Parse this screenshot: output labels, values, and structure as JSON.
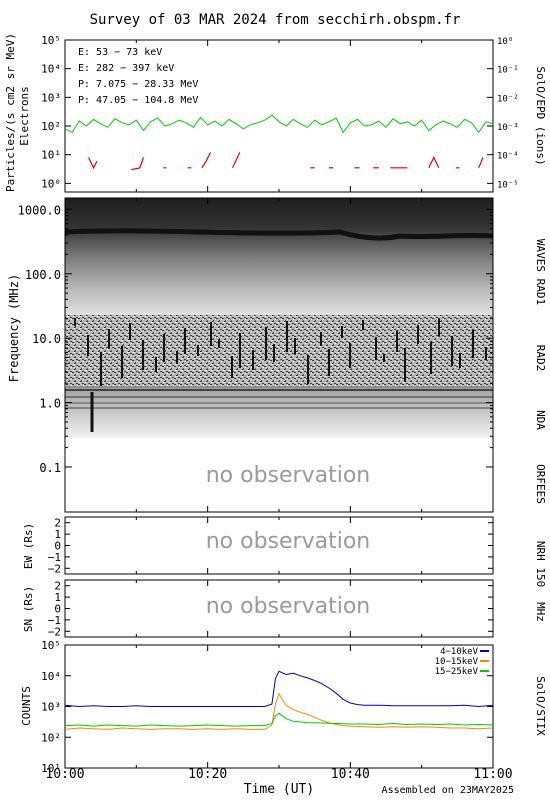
{
  "title": "Survey of 03 MAR 2024 from secchirh.obspm.fr",
  "footer": "Assembled on 23MAY2025",
  "x_axis": {
    "label": "Time (UT)",
    "ticks": [
      "10:00",
      "10:20",
      "10:40",
      "11:00"
    ],
    "start_min": 0,
    "end_min": 60
  },
  "no_observation": "no observation",
  "chart_data": [
    {
      "id": "epd",
      "type": "line",
      "instrument": "SolO/EPD (ions)",
      "ylabel_left": "Particles/(s cm2 sr MeV)",
      "ylabel_left2": "Electrons",
      "y_log": true,
      "ylim": [
        0.5,
        100000
      ],
      "yticks_left": [
        "10⁰",
        "10¹",
        "10²",
        "10³",
        "10⁴",
        "10⁵"
      ],
      "yticks_right": [
        "10⁻⁵",
        "10⁻⁴",
        "10⁻³",
        "10⁻²",
        "10⁻¹",
        "10⁰"
      ],
      "legend": [
        {
          "text": "E: 53 − 73 keV",
          "color": "#00cc00"
        },
        {
          "text": "E: 282 − 397 keV",
          "color": "#dd0000"
        },
        {
          "text": "P: 7.075 − 28.33 MeV",
          "color": "#000000"
        },
        {
          "text": "P: 47.05 − 104.8 MeV",
          "color": "#0000cc"
        }
      ],
      "series": [
        {
          "name": "E: 53 − 73 keV",
          "color": "#00cc00",
          "x": [
            0,
            1,
            2,
            3,
            4,
            5,
            6,
            7,
            8,
            9,
            10,
            11,
            12,
            13,
            14,
            15,
            16,
            17,
            18,
            19,
            20,
            21,
            22,
            23,
            24,
            25,
            26,
            27,
            28,
            29,
            30,
            31,
            32,
            33,
            34,
            35,
            36,
            37,
            38,
            39,
            40,
            41,
            42,
            43,
            44,
            45,
            46,
            47,
            48,
            49,
            50,
            51,
            52,
            53,
            54,
            55,
            56,
            57,
            58,
            59,
            60
          ],
          "y": [
            80,
            60,
            150,
            100,
            170,
            120,
            90,
            180,
            130,
            110,
            160,
            70,
            140,
            190,
            100,
            120,
            160,
            130,
            90,
            200,
            110,
            150,
            100,
            170,
            120,
            80,
            110,
            130,
            160,
            240,
            140,
            100,
            170,
            120,
            90,
            160,
            110,
            140,
            190,
            60,
            130,
            170,
            100,
            110,
            150,
            90,
            180,
            120,
            140,
            100,
            160,
            70,
            110,
            150,
            120,
            90,
            170,
            130,
            60,
            140,
            120
          ]
        },
        {
          "name": "E: 282 − 397 keV",
          "color": "#dd0000",
          "segments": [
            [
              [
                3.3,
                8
              ],
              [
                4.0,
                3.5
              ],
              [
                4.5,
                6
              ]
            ],
            [
              [
                9.3,
                3
              ],
              [
                10.5,
                3.5
              ],
              [
                11.0,
                8
              ]
            ],
            [
              [
                13.8,
                3.5
              ],
              [
                14.2,
                3.5
              ]
            ],
            [
              [
                17.2,
                3.5
              ],
              [
                17.7,
                3.5
              ]
            ],
            [
              [
                19.2,
                3.5
              ],
              [
                19.8,
                6
              ],
              [
                20.4,
                12
              ]
            ],
            [
              [
                23.5,
                3.5
              ],
              [
                24.5,
                12
              ]
            ],
            [
              [
                34.4,
                3.5
              ],
              [
                35.0,
                3.5
              ]
            ],
            [
              [
                37.0,
                3.5
              ],
              [
                37.6,
                3.5
              ]
            ],
            [
              [
                40.6,
                3.5
              ],
              [
                41.3,
                3.5
              ]
            ],
            [
              [
                43.2,
                3.5
              ],
              [
                44.0,
                3.5
              ]
            ],
            [
              [
                45.6,
                3.5
              ],
              [
                48.0,
                3.5
              ]
            ],
            [
              [
                51.0,
                3.5
              ],
              [
                51.7,
                8
              ],
              [
                52.4,
                3.5
              ]
            ],
            [
              [
                54.8,
                3.5
              ],
              [
                55.3,
                3.5
              ]
            ],
            [
              [
                58.0,
                3.5
              ],
              [
                58.6,
                8
              ]
            ]
          ]
        }
      ]
    },
    {
      "id": "radio",
      "type": "heatmap",
      "ylabel": "Frequency (MHz)",
      "y_log": true,
      "ylim": [
        0.02,
        1500
      ],
      "yticks": [
        "0.1",
        "1.0",
        "10.0",
        "100.0",
        "1000.0"
      ],
      "instrument_labels": [
        "WAVES RAD1",
        "RAD2",
        "NDA",
        "ORFEES"
      ]
    },
    {
      "id": "nrh-ew",
      "type": "heatmap",
      "ylabel": "EW (Rs)",
      "ylim": [
        -2.5,
        2.5
      ],
      "yticks": [
        "2",
        "1",
        "0",
        "−1",
        "−2"
      ],
      "instrument": "NRH 150"
    },
    {
      "id": "nrh-sn",
      "type": "heatmap",
      "ylabel": "SN (Rs)",
      "ylim": [
        -2.5,
        2.5
      ],
      "yticks": [
        "2",
        "1",
        "0",
        "−1",
        "−2"
      ],
      "instrument": "MHz"
    },
    {
      "id": "stix",
      "type": "line",
      "instrument": "SolO/STIX",
      "ylabel": "COUNTS",
      "y_log": true,
      "ylim": [
        10,
        100000
      ],
      "yticks": [
        "10¹",
        "10²",
        "10³",
        "10⁴",
        "10⁵"
      ],
      "series": [
        {
          "name": "4−10keV",
          "color": "#0000cc",
          "x": [
            0,
            2,
            4,
            6,
            8,
            10,
            12,
            14,
            16,
            18,
            20,
            22,
            24,
            26,
            28,
            29,
            29.5,
            30,
            31,
            32,
            33,
            34,
            35,
            36,
            37,
            38,
            39,
            40,
            41,
            42,
            44,
            46,
            48,
            50,
            52,
            54,
            56,
            58,
            60
          ],
          "y": [
            1100,
            1000,
            1050,
            1000,
            1000,
            1050,
            1000,
            1000,
            1000,
            1000,
            1000,
            1000,
            1000,
            1000,
            1000,
            1200,
            8000,
            14000,
            11000,
            12000,
            10000,
            8500,
            7000,
            5500,
            4000,
            2700,
            1700,
            1300,
            1150,
            1100,
            1100,
            1050,
            1050,
            1050,
            1050,
            1050,
            1100,
            1000,
            1100
          ]
        },
        {
          "name": "10−15keV",
          "color": "#ff8800",
          "x": [
            0,
            2,
            4,
            6,
            8,
            10,
            12,
            14,
            16,
            18,
            20,
            22,
            24,
            26,
            28,
            29,
            29.5,
            30,
            30.6,
            31,
            32,
            33,
            34,
            35,
            36,
            37,
            38,
            39,
            40,
            42,
            44,
            46,
            48,
            50,
            52,
            54,
            56,
            58,
            60
          ],
          "y": [
            180,
            200,
            190,
            180,
            200,
            190,
            180,
            190,
            190,
            180,
            190,
            180,
            190,
            180,
            180,
            250,
            1200,
            2600,
            1500,
            1100,
            800,
            650,
            550,
            450,
            350,
            300,
            260,
            240,
            230,
            220,
            210,
            220,
            210,
            220,
            210,
            200,
            200,
            190,
            200
          ]
        },
        {
          "name": "15−25keV",
          "color": "#00cc00",
          "x": [
            0,
            2,
            4,
            6,
            8,
            10,
            12,
            14,
            16,
            18,
            20,
            22,
            24,
            26,
            28,
            29,
            29.5,
            30,
            31,
            32,
            34,
            36,
            38,
            40,
            42,
            44,
            46,
            48,
            50,
            52,
            54,
            56,
            58,
            60
          ],
          "y": [
            240,
            250,
            230,
            250,
            240,
            230,
            250,
            240,
            230,
            240,
            250,
            240,
            230,
            240,
            240,
            280,
            500,
            600,
            400,
            330,
            300,
            290,
            280,
            270,
            270,
            260,
            280,
            260,
            270,
            260,
            270,
            250,
            260,
            250
          ]
        }
      ]
    }
  ]
}
